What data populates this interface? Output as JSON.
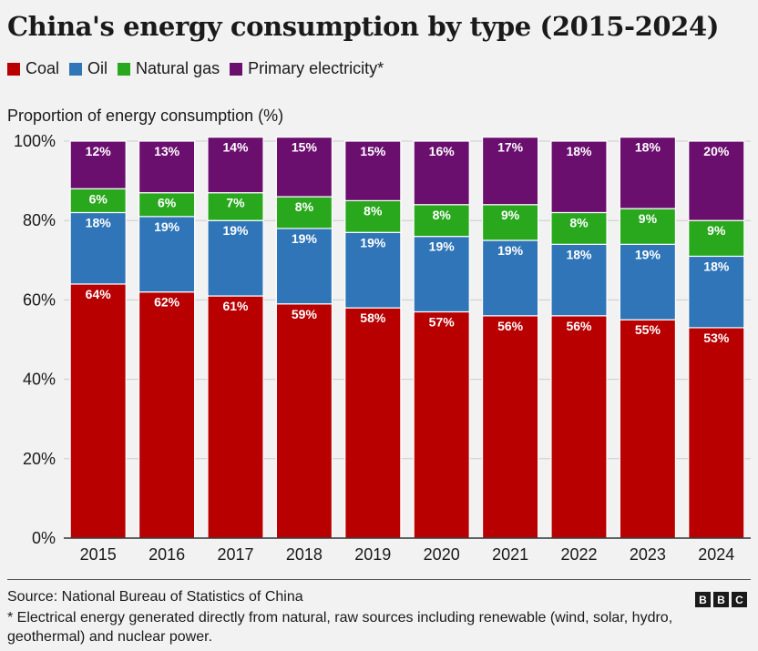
{
  "title": "China's energy consumption by type (2015-2024)",
  "legend": [
    {
      "label": "Coal",
      "color": "#b80000"
    },
    {
      "label": "Oil",
      "color": "#2f75b8"
    },
    {
      "label": "Natural gas",
      "color": "#29a81e"
    },
    {
      "label": "Primary electricity*",
      "color": "#6b0f6f"
    }
  ],
  "source": "Source: National Bureau of Statistics of China",
  "footnote": "* Electrical energy generated directly from natural, raw sources including renewable (wind, solar, hydro, geothermal) and nuclear power.",
  "logo": [
    "B",
    "B",
    "C"
  ],
  "chart_data": {
    "type": "bar",
    "stacked": true,
    "title": "China's energy consumption by type (2015-2024)",
    "ylabel": "Proportion of energy consumption (%)",
    "xlabel": "",
    "ylim": [
      0,
      100
    ],
    "yticks": [
      "0%",
      "20%",
      "40%",
      "60%",
      "80%",
      "100%"
    ],
    "categories": [
      "2015",
      "2016",
      "2017",
      "2018",
      "2019",
      "2020",
      "2021",
      "2022",
      "2023",
      "2024"
    ],
    "series": [
      {
        "name": "Coal",
        "color": "#b80000",
        "values": [
          64,
          62,
          61,
          59,
          58,
          57,
          56,
          56,
          55,
          53
        ]
      },
      {
        "name": "Oil",
        "color": "#2f75b8",
        "values": [
          18,
          19,
          19,
          19,
          19,
          19,
          19,
          18,
          19,
          18
        ]
      },
      {
        "name": "Natural gas",
        "color": "#29a81e",
        "values": [
          6,
          6,
          7,
          8,
          8,
          8,
          9,
          8,
          9,
          9
        ]
      },
      {
        "name": "Primary electricity*",
        "color": "#6b0f6f",
        "values": [
          12,
          13,
          14,
          15,
          15,
          16,
          17,
          18,
          18,
          20
        ]
      }
    ],
    "grid": true,
    "legend_position": "top-left"
  }
}
